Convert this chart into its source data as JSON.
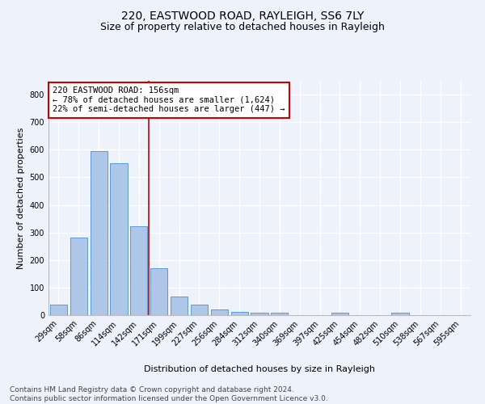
{
  "title1": "220, EASTWOOD ROAD, RAYLEIGH, SS6 7LY",
  "title2": "Size of property relative to detached houses in Rayleigh",
  "xlabel": "Distribution of detached houses by size in Rayleigh",
  "ylabel": "Number of detached properties",
  "categories": [
    "29sqm",
    "58sqm",
    "86sqm",
    "114sqm",
    "142sqm",
    "171sqm",
    "199sqm",
    "227sqm",
    "256sqm",
    "284sqm",
    "312sqm",
    "340sqm",
    "369sqm",
    "397sqm",
    "425sqm",
    "454sqm",
    "482sqm",
    "510sqm",
    "538sqm",
    "567sqm",
    "595sqm"
  ],
  "values": [
    37,
    280,
    595,
    550,
    322,
    170,
    68,
    37,
    20,
    12,
    8,
    8,
    0,
    0,
    8,
    0,
    0,
    8,
    0,
    0,
    0
  ],
  "bar_color": "#aec6e8",
  "bar_edge_color": "#5b9bd5",
  "property_line_x": 4.5,
  "annotation_text": "220 EASTWOOD ROAD: 156sqm\n← 78% of detached houses are smaller (1,624)\n22% of semi-detached houses are larger (447) →",
  "annotation_box_color": "#ffffff",
  "annotation_box_edge": "#cc0000",
  "vline_color": "#cc0000",
  "background_color": "#eef2fb",
  "grid_color": "#ffffff",
  "footer_text": "Contains HM Land Registry data © Crown copyright and database right 2024.\nContains public sector information licensed under the Open Government Licence v3.0.",
  "ylim": [
    0,
    850
  ],
  "yticks": [
    0,
    100,
    200,
    300,
    400,
    500,
    600,
    700,
    800
  ],
  "title1_fontsize": 10,
  "title2_fontsize": 9,
  "axis_label_fontsize": 8,
  "tick_fontsize": 7,
  "footer_fontsize": 6.5
}
